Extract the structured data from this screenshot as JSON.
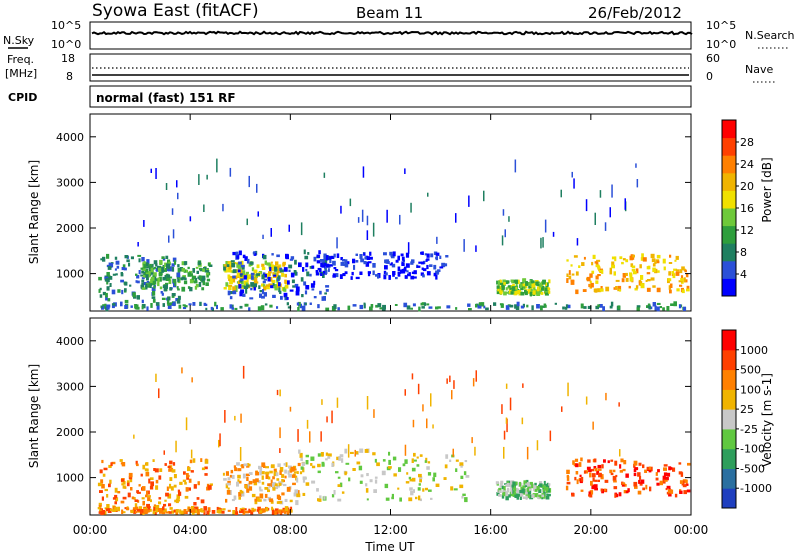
{
  "header": {
    "station": "Syowa East (fitACF)",
    "beam": "Beam 11",
    "date": "26/Feb/2012"
  },
  "top_panels": {
    "nsky_label": "N.Sky",
    "nsearch_label": "N.Search",
    "noise_ticks": [
      "10^5",
      "10^0"
    ],
    "freq_label_1": "Freq.",
    "freq_label_2": "[MHz]",
    "freq_ticks": [
      "18",
      "8"
    ],
    "nave_label": "Nave",
    "nave_ticks": [
      "60",
      "0"
    ],
    "cpid_label": "CPID",
    "cpid_value": "normal (fast) 151 RF"
  },
  "chart_data": [
    {
      "type": "heatmap",
      "title": "Power",
      "xlabel": "Time UT",
      "ylabel": "Slant Range [km]",
      "x_range_hours": [
        0,
        24
      ],
      "x_tick_labels": [
        "00:00",
        "04:00",
        "08:00",
        "12:00",
        "16:00",
        "20:00",
        "00:00"
      ],
      "ylim": [
        180,
        4500
      ],
      "y_tick_labels": [
        "1000",
        "2000",
        "3000",
        "4000"
      ],
      "colorbar": {
        "label": "Power [dB]",
        "ticks": [
          "4",
          "8",
          "12",
          "16",
          "20",
          "24",
          "28"
        ],
        "colors": [
          "#0000ff",
          "#2b50d8",
          "#1f7f60",
          "#2e9e3c",
          "#6ec93a",
          "#f0e000",
          "#f0b400",
          "#ff8000",
          "#ff4000",
          "#ff0000"
        ]
      },
      "echo_regions": [
        {
          "t0": 0.3,
          "t1": 3.6,
          "r0": 250,
          "r1": 1400,
          "level": 2
        },
        {
          "t0": 2.0,
          "t1": 4.8,
          "r0": 650,
          "r1": 1250,
          "level": 3
        },
        {
          "t0": 5.3,
          "t1": 7.8,
          "r0": 650,
          "r1": 1250,
          "level": 5
        },
        {
          "t0": 5.3,
          "t1": 9.5,
          "r0": 450,
          "r1": 1500,
          "level": 1
        },
        {
          "t0": 9.0,
          "t1": 14.2,
          "r0": 900,
          "r1": 1450,
          "level": 0
        },
        {
          "t0": 16.2,
          "t1": 18.3,
          "r0": 550,
          "r1": 850,
          "level": 4
        },
        {
          "t0": 19.0,
          "t1": 23.9,
          "r0": 600,
          "r1": 1400,
          "level": 6
        },
        {
          "t0": 0.3,
          "t1": 23.9,
          "r0": 220,
          "r1": 340,
          "level": 2
        },
        {
          "t0": 1.5,
          "t1": 22.0,
          "r0": 1500,
          "r1": 3400,
          "level": 1
        }
      ]
    },
    {
      "type": "heatmap",
      "title": "Velocity",
      "xlabel": "Time UT",
      "ylabel": "Slant Range [km]",
      "x_range_hours": [
        0,
        24
      ],
      "x_tick_labels": [
        "00:00",
        "04:00",
        "08:00",
        "12:00",
        "16:00",
        "20:00",
        "00:00"
      ],
      "ylim": [
        180,
        4500
      ],
      "y_tick_labels": [
        "1000",
        "2000",
        "3000",
        "4000"
      ],
      "colorbar": {
        "label": "Velocity [m s-1]",
        "ticks": [
          "1000",
          "500",
          "100",
          "25",
          "-25",
          "-100",
          "-500",
          "-1000"
        ],
        "colors": [
          "#1f3fbf",
          "#2a6fa0",
          "#2e9e5c",
          "#60c840",
          "#c8c8c8",
          "#f0b400",
          "#ff8000",
          "#ff4000",
          "#ff0000"
        ]
      },
      "echo_regions": [
        {
          "t0": 0.3,
          "t1": 4.8,
          "r0": 300,
          "r1": 1400,
          "level": 6
        },
        {
          "t0": 5.3,
          "t1": 8.3,
          "r0": 450,
          "r1": 1300,
          "level": 5
        },
        {
          "t0": 8.3,
          "t1": 15.0,
          "r0": 500,
          "r1": 1600,
          "level": 4
        },
        {
          "t0": 16.2,
          "t1": 18.3,
          "r0": 550,
          "r1": 900,
          "level": 3
        },
        {
          "t0": 19.0,
          "t1": 23.9,
          "r0": 600,
          "r1": 1400,
          "level": 7
        },
        {
          "t0": 0.3,
          "t1": 8.0,
          "r0": 220,
          "r1": 330,
          "level": 6
        },
        {
          "t0": 1.5,
          "t1": 22.0,
          "r0": 1500,
          "r1": 3400,
          "level": 6
        }
      ]
    }
  ]
}
